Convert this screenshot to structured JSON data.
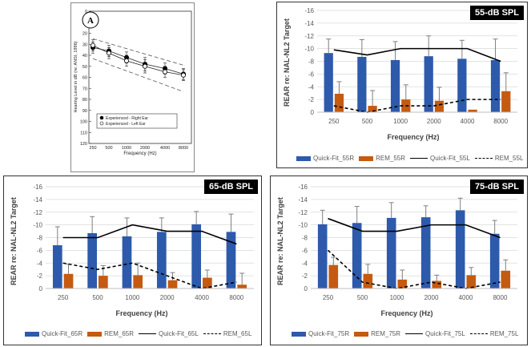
{
  "panel_a": {
    "badge": "A",
    "ylabel": "Hearing Level in dB (re: ANSI, 1996)",
    "xlabel": "Frequency (Hz)",
    "legend": [
      "Experienced - Right Ear",
      "Experienced - Left Ear"
    ]
  },
  "chart_data": [
    {
      "type": "line",
      "id": "panel_a",
      "categories": [
        "250",
        "500",
        "1000",
        "2000",
        "4000",
        "8000"
      ],
      "y_ticks": [
        0,
        10,
        20,
        30,
        40,
        50,
        60,
        70,
        80,
        90,
        100,
        110,
        120
      ],
      "ylim": [
        0,
        120
      ],
      "y_inverted": true,
      "series": [
        {
          "name": "Experienced - Right Ear",
          "values": [
            33,
            36,
            42,
            48,
            52,
            57
          ],
          "marker": "filled-circle",
          "err": [
            5,
            5,
            5,
            6,
            5,
            5
          ]
        },
        {
          "name": "Experienced - Left Ear",
          "values": [
            31,
            38,
            45,
            50,
            55,
            58
          ],
          "marker": "open-circle",
          "err": [
            5,
            5,
            5,
            6,
            5,
            5
          ]
        }
      ],
      "bounds_upper": [
        25,
        49
      ],
      "bounds_lower": [
        43,
        73
      ]
    },
    {
      "type": "bar",
      "id": "spl55",
      "tag": "55-dB SPL",
      "ylabel": "REAR re: NAL-NL2 Target",
      "xlabel": "Frequency (Hz)",
      "categories": [
        "250",
        "500",
        "1000",
        "2000",
        "4000",
        "8000"
      ],
      "y_ticks": [
        0,
        -2,
        -4,
        -6,
        -8,
        -10,
        -12,
        -14,
        -16
      ],
      "ylim": [
        0,
        -16
      ],
      "series": [
        {
          "name": "Quick-Fit_55R",
          "kind": "bar",
          "color": "#2E5AAC",
          "values": [
            -9.3,
            -8.7,
            -8.2,
            -8.8,
            -8.4,
            -8.2
          ],
          "err": [
            2.2,
            2.7,
            2.9,
            3.2,
            2.9,
            3.3
          ]
        },
        {
          "name": "REM_55R",
          "kind": "bar",
          "color": "#C55A11",
          "values": [
            -2.9,
            -1.0,
            -2.0,
            -1.8,
            -0.4,
            -3.3
          ],
          "err": [
            1.9,
            2.4,
            2.3,
            2.1,
            0,
            2.9
          ]
        },
        {
          "name": "Quick-Fit_55L",
          "kind": "line",
          "values": [
            -9.8,
            -9.0,
            -10.0,
            -10.0,
            -10.0,
            -8.0
          ]
        },
        {
          "name": "REM_55L",
          "kind": "dashed",
          "values": [
            -1.0,
            0.0,
            -1.0,
            -1.0,
            -2.0,
            -2.0
          ]
        }
      ]
    },
    {
      "type": "bar",
      "id": "spl65",
      "tag": "65-dB SPL",
      "ylabel": "REAR re: NAL-NL2 Target",
      "xlabel": "Frequency (Hz)",
      "categories": [
        "250",
        "500",
        "1000",
        "2000",
        "4000",
        "8000"
      ],
      "y_ticks": [
        0,
        -2,
        -4,
        -6,
        -8,
        -10,
        -12,
        -14,
        -16
      ],
      "ylim": [
        0,
        -16
      ],
      "series": [
        {
          "name": "Quick-Fit_65R",
          "kind": "bar",
          "color": "#2E5AAC",
          "values": [
            -6.8,
            -8.7,
            -8.2,
            -8.9,
            -10.1,
            -8.9
          ],
          "err": [
            2.9,
            2.6,
            2.9,
            2.2,
            2.0,
            2.8
          ]
        },
        {
          "name": "REM_65R",
          "kind": "bar",
          "color": "#C55A11",
          "values": [
            -2.3,
            -2.0,
            -2.1,
            -1.3,
            -1.7,
            -0.6
          ],
          "err": [
            1.5,
            1.6,
            1.9,
            1.2,
            1.2,
            1.8
          ]
        },
        {
          "name": "Quick-Fit_65L",
          "kind": "line",
          "values": [
            -8.0,
            -8.0,
            -10.0,
            -9.0,
            -9.0,
            -7.0
          ]
        },
        {
          "name": "REM_65L",
          "kind": "dashed",
          "values": [
            -4.0,
            -3.0,
            -4.0,
            -2.0,
            0.0,
            -1.0
          ]
        }
      ]
    },
    {
      "type": "bar",
      "id": "spl75",
      "tag": "75-dB SPL",
      "ylabel": "REAR re: NAL-NL2 Target",
      "xlabel": "Frequency (Hz)",
      "categories": [
        "250",
        "500",
        "1000",
        "2000",
        "4000",
        "8000"
      ],
      "y_ticks": [
        0,
        -2,
        -4,
        -6,
        -8,
        -10,
        -12,
        -14,
        -16
      ],
      "ylim": [
        0,
        -16
      ],
      "series": [
        {
          "name": "Quick-Fit_75R",
          "kind": "bar",
          "color": "#2E5AAC",
          "values": [
            -10.1,
            -10.3,
            -11.1,
            -11.2,
            -12.3,
            -8.6
          ],
          "err": [
            2.2,
            2.6,
            2.4,
            1.8,
            1.9,
            2.1
          ]
        },
        {
          "name": "REM_75R",
          "kind": "bar",
          "color": "#C55A11",
          "values": [
            -3.7,
            -2.3,
            -1.4,
            -1.2,
            -2.1,
            -2.8
          ],
          "err": [
            1.2,
            1.5,
            1.5,
            0.9,
            1.2,
            1.7
          ]
        },
        {
          "name": "Quick-Fit_75L",
          "kind": "line",
          "values": [
            -11.0,
            -9.0,
            -9.0,
            -10.0,
            -10.0,
            -8.0
          ]
        },
        {
          "name": "REM_75L",
          "kind": "dashed",
          "values": [
            -6.0,
            -1.0,
            0.0,
            -1.0,
            0.0,
            -1.0
          ]
        }
      ]
    }
  ]
}
